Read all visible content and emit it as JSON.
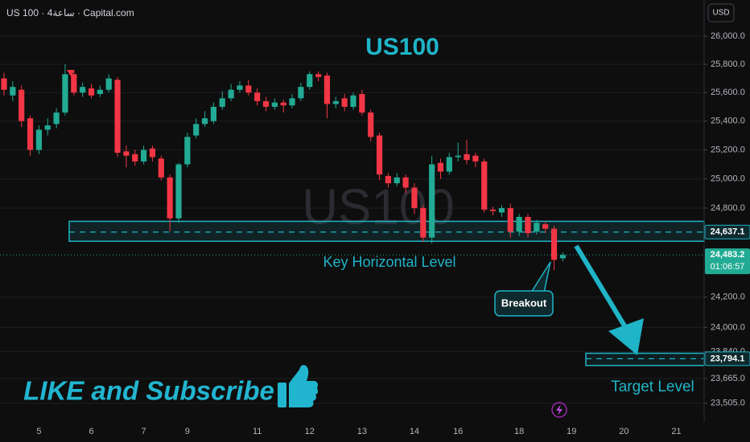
{
  "chart_data": {
    "type": "candlestick",
    "source_label": "US 100 · 4ساعة · Capital.com",
    "currency": "USD",
    "title": "US100",
    "watermark": "US100",
    "log_scale": true,
    "grid": true,
    "up_color": "#22ab94",
    "down_color": "#f23645",
    "zone_color": "#1fb4c8",
    "ylim": [
      23400,
      26260
    ],
    "yticks": [
      {
        "value": 26000,
        "label": "26,000.0"
      },
      {
        "value": 25800,
        "label": "25,800.0"
      },
      {
        "value": 25600,
        "label": "25,600.0"
      },
      {
        "value": 25400,
        "label": "25,400.0"
      },
      {
        "value": 25200,
        "label": "25,200.0"
      },
      {
        "value": 25000,
        "label": "25,000.0"
      },
      {
        "value": 24800,
        "label": "24,800.0"
      },
      {
        "value": 24200,
        "label": "24,200.0"
      },
      {
        "value": 24000,
        "label": "24,000.0"
      },
      {
        "value": 23840,
        "label": "23,840.0"
      },
      {
        "value": 23665,
        "label": "23,665.0"
      },
      {
        "value": 23505,
        "label": "23,505.0"
      }
    ],
    "categories": [
      null,
      null,
      null,
      null,
      "5",
      null,
      null,
      null,
      null,
      null,
      "6",
      null,
      null,
      null,
      null,
      null,
      "7",
      null,
      null,
      null,
      null,
      "9",
      null,
      null,
      null,
      null,
      null,
      null,
      null,
      "11",
      null,
      null,
      null,
      null,
      null,
      "12",
      null,
      null,
      null,
      null,
      null,
      "13",
      null,
      null,
      null,
      null,
      null,
      "14",
      null,
      null,
      null,
      null,
      "16",
      null,
      null,
      null,
      null,
      null,
      null,
      "18",
      null,
      null,
      null,
      null,
      null,
      "19",
      null,
      null,
      null,
      null,
      null,
      "20",
      null,
      null,
      null,
      null,
      null,
      "21",
      null,
      null
    ],
    "open": [
      25700,
      25580,
      25620,
      25420,
      25200,
      25340,
      25380,
      25460,
      25730,
      25600,
      25630,
      25590,
      25620,
      25690,
      25190,
      25170,
      25120,
      25210,
      25140,
      25010,
      24730,
      25100,
      25300,
      25380,
      25400,
      25500,
      25560,
      25620,
      25650,
      25600,
      25540,
      25500,
      25530,
      25510,
      25560,
      25640,
      25730,
      25720,
      25520,
      25560,
      25500,
      25590,
      25460,
      25300,
      25020,
      24970,
      25010,
      24940,
      24800,
      24600,
      25110,
      25050,
      25150,
      25170,
      25160,
      25120,
      24790,
      24770,
      24800,
      24640,
      24740,
      24640,
      24690,
      24660,
      24460,
      null,
      null,
      null,
      null,
      null,
      null,
      null,
      null,
      null,
      null,
      null,
      null,
      null,
      null,
      null
    ],
    "high": [
      25740,
      25680,
      25650,
      25440,
      25370,
      25420,
      25490,
      25800,
      25760,
      25670,
      25660,
      25650,
      25730,
      25710,
      25230,
      25200,
      25230,
      25230,
      25160,
      25030,
      25110,
      25320,
      25420,
      25470,
      25530,
      25610,
      25660,
      25680,
      25690,
      25630,
      25570,
      25560,
      25550,
      25590,
      25670,
      25750,
      25750,
      25740,
      25570,
      25590,
      25600,
      25620,
      25480,
      25320,
      25040,
      25040,
      25030,
      24970,
      24820,
      25160,
      25140,
      25180,
      25250,
      25270,
      25180,
      25140,
      24810,
      24820,
      24830,
      24760,
      24760,
      24720,
      24710,
      24680,
      24500,
      null,
      null,
      null,
      null,
      null,
      null,
      null,
      null,
      null,
      null,
      null,
      null,
      null,
      null,
      null
    ],
    "low": [
      25580,
      25540,
      25360,
      25160,
      25170,
      25300,
      25350,
      25440,
      25580,
      25570,
      25560,
      25570,
      25600,
      25150,
      25080,
      25090,
      25100,
      25120,
      24990,
      24640,
      24700,
      25080,
      25280,
      25360,
      25380,
      25480,
      25540,
      25600,
      25580,
      25510,
      25470,
      25480,
      25460,
      25490,
      25540,
      25620,
      25680,
      25420,
      25490,
      25470,
      25480,
      25440,
      25260,
      24990,
      24940,
      24950,
      24900,
      24760,
      24570,
      24560,
      25000,
      25030,
      25120,
      25100,
      25080,
      24770,
      24750,
      24740,
      24600,
      24610,
      24600,
      24620,
      24630,
      24380,
      24440,
      null,
      null,
      null,
      null,
      null,
      null,
      null,
      null,
      null,
      null,
      null,
      null,
      null,
      null,
      null
    ],
    "close": [
      25620,
      25640,
      25400,
      25200,
      25340,
      25370,
      25460,
      25730,
      25600,
      25640,
      25580,
      25620,
      25700,
      25180,
      25160,
      25120,
      25200,
      25150,
      25010,
      24730,
      25100,
      25290,
      25380,
      25420,
      25500,
      25560,
      25620,
      25650,
      25600,
      25540,
      25500,
      25530,
      25510,
      25560,
      25640,
      25730,
      25710,
      25520,
      25540,
      25500,
      25580,
      25460,
      25290,
      25030,
      24970,
      25010,
      24940,
      24800,
      24600,
      25100,
      25050,
      25150,
      25160,
      25130,
      25120,
      24790,
      24780,
      24800,
      24640,
      24740,
      24630,
      24700,
      24660,
      24450,
      24483,
      null,
      null,
      null,
      null,
      null,
      null,
      null,
      null,
      null,
      null,
      null,
      null,
      null,
      null,
      null
    ],
    "support_zone": [
      24575,
      24710
    ],
    "key_level": {
      "value": 24637.1,
      "label": "24,637.1",
      "text": "Key Horizontal Level"
    },
    "current_price": {
      "value": 24483.2,
      "label": "24,483.2",
      "countdown": "01:06:57"
    },
    "breakout_label": "Breakout",
    "target_zone": [
      23750,
      23830
    ],
    "target_level": {
      "value": 23794.1,
      "label": "23,794.1",
      "text": "Target Level"
    },
    "promo_text": "LIKE and Subscribe"
  }
}
